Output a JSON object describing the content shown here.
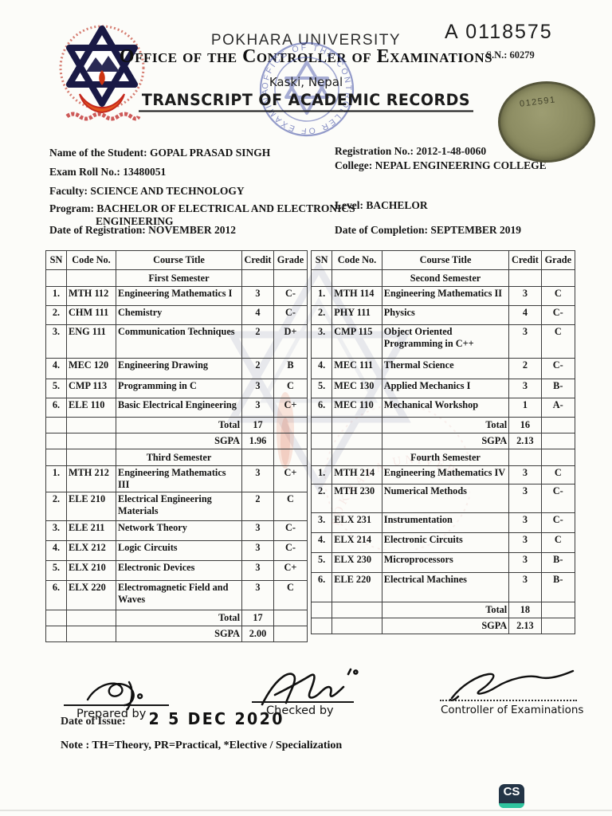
{
  "header": {
    "doc_number": "A 0118575",
    "university_name": "POKHARA UNIVERSITY",
    "office_name": "Office of the Controller of Examinations",
    "serial_no": "S.N.: 60279",
    "location": "Kaski, Nepal",
    "title": "TRANSCRIPT OF ACADEMIC RECORDS",
    "stamp_text": "OFFICE OF THE CONTROLLER OF EXAMINATIONS ★",
    "seal_number": "012591"
  },
  "student": {
    "name": "Name of the Student: GOPAL PRASAD SINGH",
    "exam_roll": "Exam Roll No.: 13480051",
    "faculty": "Faculty: SCIENCE AND TECHNOLOGY",
    "program_line1": "Program: BACHELOR OF ELECTRICAL AND ELECTRONICS",
    "program_line2": "ENGINEERING",
    "date_of_registration": "Date of Registration: NOVEMBER 2012",
    "registration_no": "Registration No.: 2012-1-48-0060",
    "college": "College: NEPAL ENGINEERING COLLEGE",
    "level": "Level: BACHELOR",
    "date_of_completion": "Date of Completion: SEPTEMBER 2019"
  },
  "tables": [
    {
      "columns": [
        "SN",
        "Code No.",
        "Course Title",
        "Credit",
        "Grade"
      ],
      "sections": [
        {
          "semester": "First Semester",
          "rows": [
            [
              "1.",
              "MTH 112",
              "Engineering Mathematics I",
              "3",
              "C-"
            ],
            [
              "2.",
              "CHM 111",
              "Chemistry",
              "4",
              "C-"
            ],
            [
              "3.",
              "ENG 111",
              "Communication Techniques",
              "2",
              "D+"
            ],
            [
              "4.",
              "MEC 120",
              "Engineering Drawing",
              "2",
              "B"
            ],
            [
              "5.",
              "CMP 113",
              "Programming in C",
              "3",
              "C"
            ],
            [
              "6.",
              "ELE 110",
              "Basic Electrical Engineering",
              "3",
              "C+"
            ]
          ],
          "total_label": "Total",
          "total": "17",
          "sgpa_label": "SGPA",
          "sgpa": "1.96"
        },
        {
          "semester": "Third Semester",
          "rows": [
            [
              "1.",
              "MTH 212",
              "Engineering Mathematics III",
              "3",
              "C+"
            ],
            [
              "2.",
              "ELE 210",
              "Electrical Engineering Materials",
              "2",
              "C"
            ],
            [
              "3.",
              "ELE 211",
              "Network Theory",
              "3",
              "C-"
            ],
            [
              "4.",
              "ELX 212",
              "Logic Circuits",
              "3",
              "C-"
            ],
            [
              "5.",
              "ELX 210",
              "Electronic Devices",
              "3",
              "C+"
            ],
            [
              "6.",
              "ELX 220",
              "Electromagnetic Field and Waves",
              "3",
              "C"
            ]
          ],
          "total_label": "Total",
          "total": "17",
          "sgpa_label": "SGPA",
          "sgpa": "2.00"
        }
      ]
    },
    {
      "columns": [
        "SN",
        "Code No.",
        "Course Title",
        "Credit",
        "Grade"
      ],
      "sections": [
        {
          "semester": "Second Semester",
          "rows": [
            [
              "1.",
              "MTH 114",
              "Engineering Mathematics II",
              "3",
              "C"
            ],
            [
              "2.",
              "PHY 111",
              "Physics",
              "4",
              "C-"
            ],
            [
              "3.",
              "CMP 115",
              "Object Oriented Programming in C++",
              "3",
              "C"
            ],
            [
              "4.",
              "MEC 111",
              "Thermal Science",
              "2",
              "C-"
            ],
            [
              "5.",
              "MEC 130",
              "Applied Mechanics I",
              "3",
              "B-"
            ],
            [
              "6.",
              "MEC 110",
              "Mechanical Workshop",
              "1",
              "A-"
            ]
          ],
          "total_label": "Total",
          "total": "16",
          "sgpa_label": "SGPA",
          "sgpa": "2.13"
        },
        {
          "semester": "Fourth Semester",
          "rows": [
            [
              "1.",
              "MTH 214",
              "Engineering Mathematics IV",
              "3",
              "C"
            ],
            [
              "2.",
              "MTH 230",
              "Numerical Methods",
              "3",
              "C-"
            ],
            [
              "3.",
              "ELX 231",
              "Instrumentation",
              "3",
              "C-"
            ],
            [
              "4.",
              "ELX 214",
              "Electronic Circuits",
              "3",
              "C"
            ],
            [
              "5.",
              "ELX 230",
              "Microprocessors",
              "3",
              "B-"
            ],
            [
              "6.",
              "ELE 220",
              "Electrical Machines",
              "3",
              "B-"
            ]
          ],
          "total_label": "Total",
          "total": "18",
          "sgpa_label": "SGPA",
          "sgpa": "2.13"
        }
      ]
    }
  ],
  "footer": {
    "prepared_by": "Prepared by",
    "checked_by": "Checked by",
    "controller": "Controller of Examinations",
    "date_of_issue_label": "Date of Issue:",
    "date_of_issue_stamp": "2 5 DEC 2020",
    "note": "Note : TH=Theory, PR=Practical, *Elective / Specialization"
  },
  "branding": {
    "scanner_badge": "CS"
  },
  "colors": {
    "stamp_blue": "#4653a8",
    "seal_olive": "#8b8b61",
    "logo_navy": "#191945",
    "logo_red": "#c5281c",
    "scanner_navy": "#233446",
    "scanner_teal": "#2fc49f"
  }
}
